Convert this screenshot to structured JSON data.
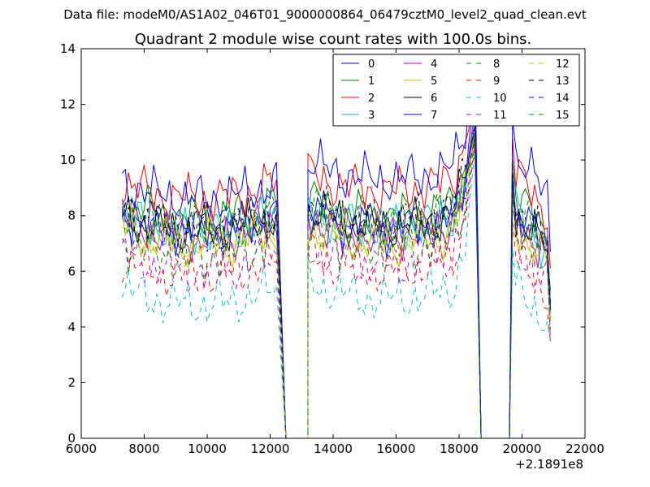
{
  "figure": {
    "suptitle": "Data file: modeM0/AS1A02_046T01_9000000864_06479cztM0_level2_quad_clean.evt"
  },
  "chart_data": {
    "type": "line",
    "title": "Quadrant 2 module wise count rates with 100.0s bins.",
    "xlabel": "",
    "ylabel": "",
    "x_offset_label": "+2.1891e8",
    "xlim": [
      6000,
      22000
    ],
    "ylim": [
      0,
      14
    ],
    "x_ticks": [
      6000,
      8000,
      10000,
      12000,
      14000,
      16000,
      18000,
      20000,
      22000
    ],
    "y_ticks": [
      0,
      2,
      4,
      6,
      8,
      10,
      12,
      14
    ],
    "legend": {
      "placement": "top-right",
      "columns": 4
    },
    "segments": [
      {
        "start": 7300,
        "end": 12200,
        "step": 100
      },
      {
        "start": 13200,
        "end": 18200,
        "step": 100
      },
      {
        "start": 19700,
        "end": 20800,
        "step": 100
      }
    ],
    "gaps": [
      {
        "left_edge": 12300,
        "zero_start": 12500,
        "zero_end": 13200
      },
      {
        "left_edge": 18200,
        "peak_at": 18500,
        "zero_start": 18700,
        "zero_end": 19600
      },
      {
        "left_edge": 20800,
        "drop_end": 20900
      }
    ],
    "series": [
      {
        "name": "0",
        "color": "#0000ff",
        "dash": "solid",
        "seg_means": [
          7.5,
          7.5,
          8.3
        ],
        "peak": 12.5
      },
      {
        "name": "1",
        "color": "#008000",
        "dash": "solid",
        "seg_means": [
          7.9,
          8.0,
          8.8
        ],
        "peak": 11.0
      },
      {
        "name": "2",
        "color": "#ff0000",
        "dash": "solid",
        "seg_means": [
          8.6,
          8.9,
          9.6
        ],
        "peak": 12.2
      },
      {
        "name": "3",
        "color": "#00bfbf",
        "dash": "solid",
        "seg_means": [
          7.4,
          7.6,
          8.2
        ],
        "peak": 11.5
      },
      {
        "name": "4",
        "color": "#bf00bf",
        "dash": "solid",
        "seg_means": [
          7.2,
          7.3,
          8.0
        ],
        "peak": 11.8
      },
      {
        "name": "5",
        "color": "#bfbf00",
        "dash": "solid",
        "seg_means": [
          6.9,
          7.0,
          7.8
        ],
        "peak": 10.9
      },
      {
        "name": "6",
        "color": "#000000",
        "dash": "solid",
        "seg_means": [
          7.4,
          7.6,
          8.2
        ],
        "peak": 10.8
      },
      {
        "name": "7",
        "color": "#0000ff",
        "dash": "solid",
        "seg_means": [
          8.6,
          9.3,
          10.2
        ],
        "peak": 13.7
      },
      {
        "name": "8",
        "color": "#008000",
        "dash": "dashed",
        "seg_means": [
          7.5,
          7.6,
          8.2
        ],
        "peak": 11.2
      },
      {
        "name": "9",
        "color": "#ff0000",
        "dash": "dashed",
        "seg_means": [
          5.8,
          6.0,
          6.6
        ],
        "peak": 10.5
      },
      {
        "name": "10",
        "color": "#00bfbf",
        "dash": "dashed",
        "seg_means": [
          4.8,
          5.0,
          5.6
        ],
        "peak": 10.3
      },
      {
        "name": "11",
        "color": "#bf00bf",
        "dash": "dashed",
        "seg_means": [
          6.0,
          6.2,
          7.0
        ],
        "peak": 10.6
      },
      {
        "name": "12",
        "color": "#bfbf00",
        "dash": "dashed",
        "seg_means": [
          7.0,
          7.1,
          7.7
        ],
        "peak": 11.0
      },
      {
        "name": "13",
        "color": "#000000",
        "dash": "dashed",
        "seg_means": [
          7.6,
          7.8,
          8.4
        ],
        "peak": 11.2
      },
      {
        "name": "14",
        "color": "#0000ff",
        "dash": "dashed",
        "seg_means": [
          7.3,
          7.5,
          8.1
        ],
        "peak": 11.4
      },
      {
        "name": "15",
        "color": "#008000",
        "dash": "dashed",
        "seg_means": [
          6.5,
          6.8,
          7.4
        ],
        "peak": 10.7
      }
    ]
  }
}
